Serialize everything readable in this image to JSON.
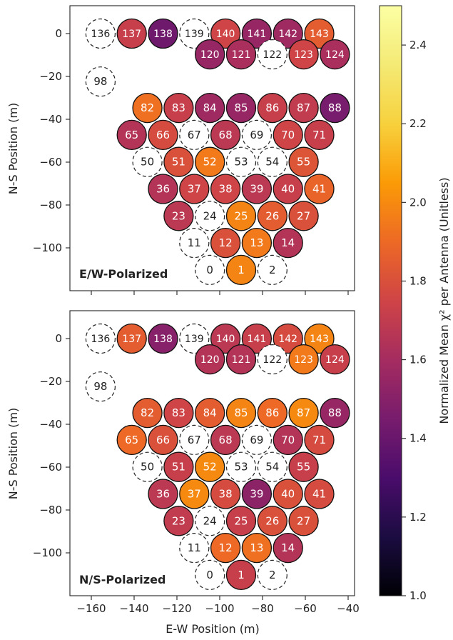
{
  "figure": {
    "xlabel": "E-W Position (m)",
    "ylabel": "N-S Position (m)",
    "colorbar_label": "Normalized Mean χ² per Antenna (Unitless)"
  },
  "colormap": {
    "name": "inferno",
    "range": [
      1.0,
      2.5
    ],
    "ticks": [
      1.0,
      1.2,
      1.4,
      1.6,
      1.8,
      2.0,
      2.2,
      2.4
    ]
  },
  "axes_config": {
    "xlim": [
      -170,
      -37
    ],
    "ylim": [
      -120,
      13
    ],
    "xticks": [
      -160,
      -140,
      -120,
      -100,
      -80,
      -60,
      -40
    ],
    "yticks": [
      0,
      -20,
      -40,
      -60,
      -80,
      -100
    ]
  },
  "chart_data": [
    {
      "type": "scatter",
      "title": "E/W-Polarized",
      "antennas": [
        {
          "id": "136",
          "x": -155.7,
          "y": 0,
          "value": null
        },
        {
          "id": "137",
          "x": -141.1,
          "y": 0,
          "value": 1.72
        },
        {
          "id": "138",
          "x": -126.5,
          "y": 0,
          "value": 1.42
        },
        {
          "id": "139",
          "x": -111.9,
          "y": 0,
          "value": null
        },
        {
          "id": "140",
          "x": -97.3,
          "y": 0,
          "value": 1.75
        },
        {
          "id": "141",
          "x": -82.7,
          "y": 0,
          "value": 1.55
        },
        {
          "id": "142",
          "x": -68.1,
          "y": 0,
          "value": 1.58
        },
        {
          "id": "143",
          "x": -53.5,
          "y": 0,
          "value": 1.85
        },
        {
          "id": "120",
          "x": -104.6,
          "y": -9.7,
          "value": 1.55
        },
        {
          "id": "121",
          "x": -90.0,
          "y": -9.7,
          "value": 1.62
        },
        {
          "id": "122",
          "x": -75.4,
          "y": -9.7,
          "value": null
        },
        {
          "id": "123",
          "x": -60.8,
          "y": -9.7,
          "value": 1.75
        },
        {
          "id": "124",
          "x": -46.2,
          "y": -9.7,
          "value": 1.62
        },
        {
          "id": "98",
          "x": -155.7,
          "y": -22.4,
          "value": null
        },
        {
          "id": "82",
          "x": -133.8,
          "y": -34.7,
          "value": 1.92
        },
        {
          "id": "83",
          "x": -119.2,
          "y": -34.7,
          "value": 1.72
        },
        {
          "id": "84",
          "x": -104.6,
          "y": -34.7,
          "value": 1.58
        },
        {
          "id": "85",
          "x": -90.0,
          "y": -34.7,
          "value": 1.55
        },
        {
          "id": "86",
          "x": -75.4,
          "y": -34.7,
          "value": 1.72
        },
        {
          "id": "87",
          "x": -60.8,
          "y": -34.7,
          "value": 1.7
        },
        {
          "id": "88",
          "x": -46.2,
          "y": -34.7,
          "value": 1.45
        },
        {
          "id": "65",
          "x": -141.1,
          "y": -47.3,
          "value": 1.65
        },
        {
          "id": "66",
          "x": -126.5,
          "y": -47.3,
          "value": 1.78
        },
        {
          "id": "67",
          "x": -111.9,
          "y": -47.3,
          "value": null
        },
        {
          "id": "68",
          "x": -97.3,
          "y": -47.3,
          "value": 1.68
        },
        {
          "id": "69",
          "x": -82.7,
          "y": -47.3,
          "value": null
        },
        {
          "id": "70",
          "x": -68.1,
          "y": -47.3,
          "value": 1.75
        },
        {
          "id": "71",
          "x": -53.5,
          "y": -47.3,
          "value": 1.72
        },
        {
          "id": "50",
          "x": -133.8,
          "y": -59.9,
          "value": null
        },
        {
          "id": "51",
          "x": -119.2,
          "y": -59.9,
          "value": 1.8
        },
        {
          "id": "52",
          "x": -104.6,
          "y": -59.9,
          "value": 1.95
        },
        {
          "id": "53",
          "x": -90.0,
          "y": -59.9,
          "value": null
        },
        {
          "id": "54",
          "x": -75.4,
          "y": -59.9,
          "value": null
        },
        {
          "id": "55",
          "x": -60.8,
          "y": -59.9,
          "value": 1.82
        },
        {
          "id": "36",
          "x": -126.5,
          "y": -72.5,
          "value": 1.65
        },
        {
          "id": "37",
          "x": -111.9,
          "y": -72.5,
          "value": 1.75
        },
        {
          "id": "38",
          "x": -97.3,
          "y": -72.5,
          "value": 1.75
        },
        {
          "id": "39",
          "x": -82.7,
          "y": -72.5,
          "value": 1.68
        },
        {
          "id": "40",
          "x": -68.1,
          "y": -72.5,
          "value": 1.72
        },
        {
          "id": "41",
          "x": -53.5,
          "y": -72.5,
          "value": 1.88
        },
        {
          "id": "23",
          "x": -119.2,
          "y": -85.1,
          "value": 1.68
        },
        {
          "id": "24",
          "x": -104.6,
          "y": -85.1,
          "value": null
        },
        {
          "id": "25",
          "x": -90.0,
          "y": -85.1,
          "value": 1.98
        },
        {
          "id": "26",
          "x": -75.4,
          "y": -85.1,
          "value": 1.85
        },
        {
          "id": "27",
          "x": -60.8,
          "y": -85.1,
          "value": 1.8
        },
        {
          "id": "11",
          "x": -111.9,
          "y": -97.7,
          "value": null
        },
        {
          "id": "12",
          "x": -97.3,
          "y": -97.7,
          "value": 1.8
        },
        {
          "id": "13",
          "x": -82.7,
          "y": -97.7,
          "value": 1.95
        },
        {
          "id": "14",
          "x": -68.1,
          "y": -97.7,
          "value": 1.65
        },
        {
          "id": "0",
          "x": -104.6,
          "y": -110.3,
          "value": null
        },
        {
          "id": "1",
          "x": -90.0,
          "y": -110.3,
          "value": 1.98
        },
        {
          "id": "2",
          "x": -75.4,
          "y": -110.3,
          "value": null
        }
      ]
    },
    {
      "type": "scatter",
      "title": "N/S-Polarized",
      "antennas": [
        {
          "id": "136",
          "x": -155.7,
          "y": 0,
          "value": null
        },
        {
          "id": "137",
          "x": -141.1,
          "y": 0,
          "value": 1.85
        },
        {
          "id": "138",
          "x": -126.5,
          "y": 0,
          "value": 1.5
        },
        {
          "id": "139",
          "x": -111.9,
          "y": 0,
          "value": null
        },
        {
          "id": "140",
          "x": -97.3,
          "y": 0,
          "value": 1.68
        },
        {
          "id": "141",
          "x": -82.7,
          "y": 0,
          "value": 1.72
        },
        {
          "id": "142",
          "x": -68.1,
          "y": 0,
          "value": 1.78
        },
        {
          "id": "143",
          "x": -53.5,
          "y": 0,
          "value": 1.98
        },
        {
          "id": "120",
          "x": -104.6,
          "y": -9.7,
          "value": 1.65
        },
        {
          "id": "121",
          "x": -90.0,
          "y": -9.7,
          "value": 1.65
        },
        {
          "id": "122",
          "x": -75.4,
          "y": -9.7,
          "value": null
        },
        {
          "id": "123",
          "x": -60.8,
          "y": -9.7,
          "value": 1.95
        },
        {
          "id": "124",
          "x": -46.2,
          "y": -9.7,
          "value": 1.72
        },
        {
          "id": "98",
          "x": -155.7,
          "y": -22.4,
          "value": null
        },
        {
          "id": "82",
          "x": -133.8,
          "y": -34.7,
          "value": 1.85
        },
        {
          "id": "83",
          "x": -119.2,
          "y": -34.7,
          "value": 1.75
        },
        {
          "id": "84",
          "x": -104.6,
          "y": -34.7,
          "value": 1.85
        },
        {
          "id": "85",
          "x": -90.0,
          "y": -34.7,
          "value": 1.98
        },
        {
          "id": "86",
          "x": -75.4,
          "y": -34.7,
          "value": 1.9
        },
        {
          "id": "87",
          "x": -60.8,
          "y": -34.7,
          "value": 2.0
        },
        {
          "id": "88",
          "x": -46.2,
          "y": -34.7,
          "value": 1.55
        },
        {
          "id": "65",
          "x": -141.1,
          "y": -47.3,
          "value": 1.9
        },
        {
          "id": "66",
          "x": -126.5,
          "y": -47.3,
          "value": 1.8
        },
        {
          "id": "67",
          "x": -111.9,
          "y": -47.3,
          "value": null
        },
        {
          "id": "68",
          "x": -97.3,
          "y": -47.3,
          "value": 1.68
        },
        {
          "id": "69",
          "x": -82.7,
          "y": -47.3,
          "value": null
        },
        {
          "id": "70",
          "x": -68.1,
          "y": -47.3,
          "value": 1.65
        },
        {
          "id": "71",
          "x": -53.5,
          "y": -47.3,
          "value": 1.78
        },
        {
          "id": "50",
          "x": -133.8,
          "y": -59.9,
          "value": null
        },
        {
          "id": "51",
          "x": -119.2,
          "y": -59.9,
          "value": 1.72
        },
        {
          "id": "52",
          "x": -104.6,
          "y": -59.9,
          "value": 2.0
        },
        {
          "id": "53",
          "x": -90.0,
          "y": -59.9,
          "value": null
        },
        {
          "id": "54",
          "x": -75.4,
          "y": -59.9,
          "value": null
        },
        {
          "id": "55",
          "x": -60.8,
          "y": -59.9,
          "value": 1.72
        },
        {
          "id": "36",
          "x": -126.5,
          "y": -72.5,
          "value": 1.68
        },
        {
          "id": "37",
          "x": -111.9,
          "y": -72.5,
          "value": 2.0
        },
        {
          "id": "38",
          "x": -97.3,
          "y": -72.5,
          "value": 1.78
        },
        {
          "id": "39",
          "x": -82.7,
          "y": -72.5,
          "value": 1.52
        },
        {
          "id": "40",
          "x": -68.1,
          "y": -72.5,
          "value": 1.8
        },
        {
          "id": "41",
          "x": -53.5,
          "y": -72.5,
          "value": 1.78
        },
        {
          "id": "23",
          "x": -119.2,
          "y": -85.1,
          "value": 1.7
        },
        {
          "id": "24",
          "x": -104.6,
          "y": -85.1,
          "value": null
        },
        {
          "id": "25",
          "x": -90.0,
          "y": -85.1,
          "value": 1.72
        },
        {
          "id": "26",
          "x": -75.4,
          "y": -85.1,
          "value": 1.8
        },
        {
          "id": "27",
          "x": -60.8,
          "y": -85.1,
          "value": 1.8
        },
        {
          "id": "11",
          "x": -111.9,
          "y": -97.7,
          "value": null
        },
        {
          "id": "12",
          "x": -97.3,
          "y": -97.7,
          "value": 1.9
        },
        {
          "id": "13",
          "x": -82.7,
          "y": -97.7,
          "value": 1.92
        },
        {
          "id": "14",
          "x": -68.1,
          "y": -97.7,
          "value": 1.65
        },
        {
          "id": "0",
          "x": -104.6,
          "y": -110.3,
          "value": null
        },
        {
          "id": "1",
          "x": -90.0,
          "y": -110.3,
          "value": 1.72
        },
        {
          "id": "2",
          "x": -75.4,
          "y": -110.3,
          "value": null
        }
      ]
    }
  ]
}
